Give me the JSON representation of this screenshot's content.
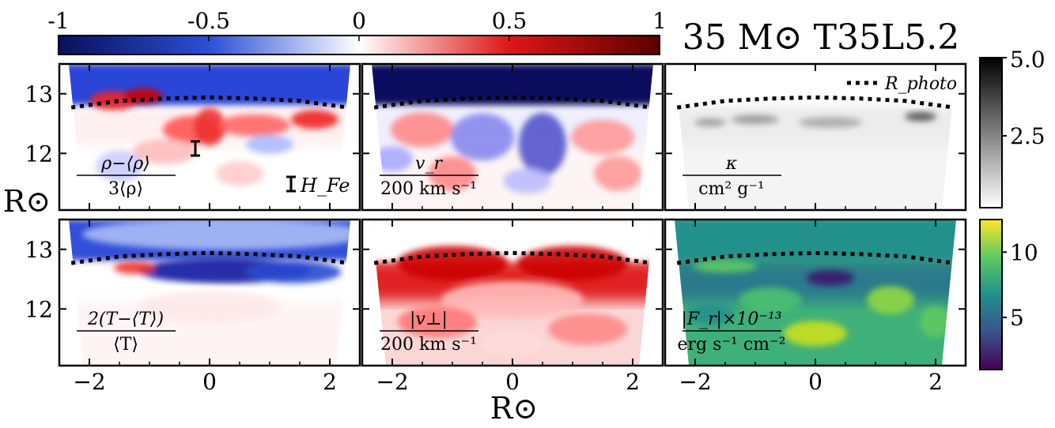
{
  "chart_data": {
    "type": "heatmap",
    "title": "35 M⊙  T35L5.2",
    "xlabel": "R⊙",
    "ylabel": "R⊙",
    "xlim": [
      -2.5,
      2.5
    ],
    "ylim": [
      11.05,
      13.5
    ],
    "xticks": [
      -2,
      0,
      2
    ],
    "yticks": [
      12,
      13
    ],
    "x_tick_labels": [
      "−2",
      "0",
      "2"
    ],
    "y_tick_labels": [
      "12",
      "13"
    ],
    "diverging_colorbar": {
      "ticks": [
        -1,
        -0.5,
        0,
        0.5,
        1
      ],
      "tick_labels": [
        "-1",
        "-0.5",
        "0",
        "0.5",
        "1"
      ],
      "colors": [
        "#0a0f5a",
        "#2b4fd6",
        "#ffffff",
        "#e01616",
        "#5a0000"
      ]
    },
    "opacity_colorbar": {
      "range": [
        0.2,
        5.0
      ],
      "ticks": [
        2.5,
        5.0
      ],
      "tick_labels": [
        "2.5",
        "5.0"
      ],
      "colors": [
        "#ffffff",
        "#000000"
      ]
    },
    "flux_colorbar": {
      "range": [
        1,
        12.5
      ],
      "ticks": [
        5,
        10
      ],
      "tick_labels": [
        "5",
        "10"
      ],
      "colors": [
        "#440154",
        "#3b528b",
        "#21918c",
        "#5ec962",
        "#fde725"
      ]
    },
    "photosphere_curve": {
      "x": [
        -2.3,
        -1.5,
        -0.75,
        0,
        0.75,
        1.5,
        2.3
      ],
      "y": [
        12.77,
        12.88,
        12.92,
        12.94,
        12.92,
        12.88,
        12.77
      ]
    },
    "legend_label": "R_photo",
    "scale_bar_label": "H_Fe",
    "panels": [
      {
        "id": "density",
        "row": 0,
        "col": 0,
        "colormap": "diverging",
        "label_num": "ρ−⟨ρ⟩",
        "label_den": "3⟨ρ⟩"
      },
      {
        "id": "radial-velocity",
        "row": 0,
        "col": 1,
        "colormap": "diverging",
        "label_num": "v_r",
        "label_den": "200 km s⁻¹"
      },
      {
        "id": "opacity",
        "row": 0,
        "col": 2,
        "colormap": "gray",
        "label_num": "κ",
        "label_den": "cm² g⁻¹"
      },
      {
        "id": "temperature",
        "row": 1,
        "col": 0,
        "colormap": "diverging",
        "label_num": "2(T−⟨T⟩)",
        "label_den": "⟨T⟩"
      },
      {
        "id": "tangential-velocity",
        "row": 1,
        "col": 1,
        "colormap": "diverging",
        "label_num": "|v⊥|",
        "label_den": "200 km s⁻¹"
      },
      {
        "id": "radiative-flux",
        "row": 1,
        "col": 2,
        "colormap": "viridis",
        "label_num": "|F_r|×10⁻¹³",
        "label_den": "erg s⁻¹ cm⁻²"
      }
    ]
  }
}
